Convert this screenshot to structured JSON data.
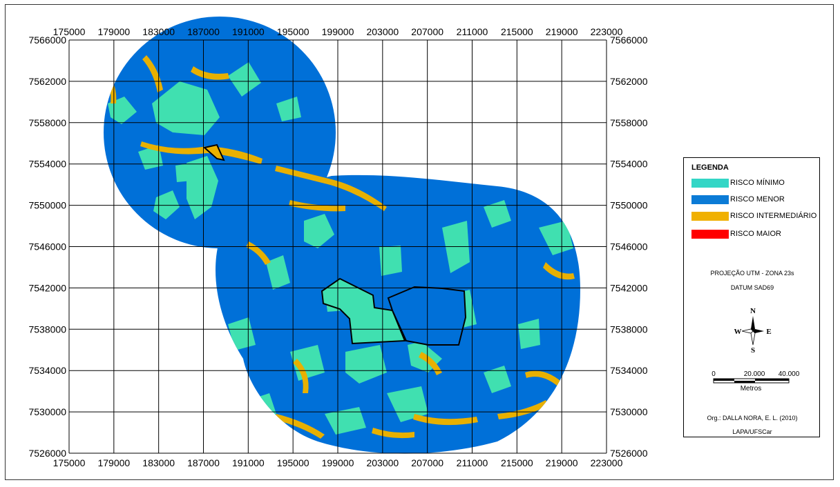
{
  "map": {
    "x_ticks": [
      "175000",
      "179000",
      "183000",
      "187000",
      "191000",
      "195000",
      "199000",
      "203000",
      "207000",
      "211000",
      "215000",
      "219000",
      "223000"
    ],
    "y_ticks": [
      "7566000",
      "7562000",
      "7558000",
      "7554000",
      "7550000",
      "7546000",
      "7542000",
      "7538000",
      "7534000",
      "7530000",
      "7526000"
    ],
    "colors": {
      "risco_minimo": "#40e0b0",
      "risco_menor": "#0070d8",
      "risco_intermediario": "#e8b000",
      "risco_maior": "#ff0000",
      "grid": "#000000"
    }
  },
  "legend": {
    "title": "LEGENDA",
    "items": [
      {
        "label": "RISCO MÍNIMO",
        "color": "#33d6c6"
      },
      {
        "label": "RISCO MENOR",
        "color": "#0b7bd6"
      },
      {
        "label": "RISCO INTERMEDIÁRIO",
        "color": "#f0b000"
      },
      {
        "label": "RISCO MAIOR",
        "color": "#ff0000"
      }
    ],
    "projection": "PROJEÇÃO UTM - ZONA 23s",
    "datum": "DATUM SAD69",
    "compass": {
      "n": "N",
      "s": "S",
      "e": "E",
      "w": "W"
    },
    "scale": {
      "labels": [
        "0",
        "20.000",
        "40.000"
      ],
      "unit": "Metros"
    },
    "org": "Org.: DALLA NORA, E. L. (2010)",
    "lab": "LAPA/UFSCar"
  }
}
